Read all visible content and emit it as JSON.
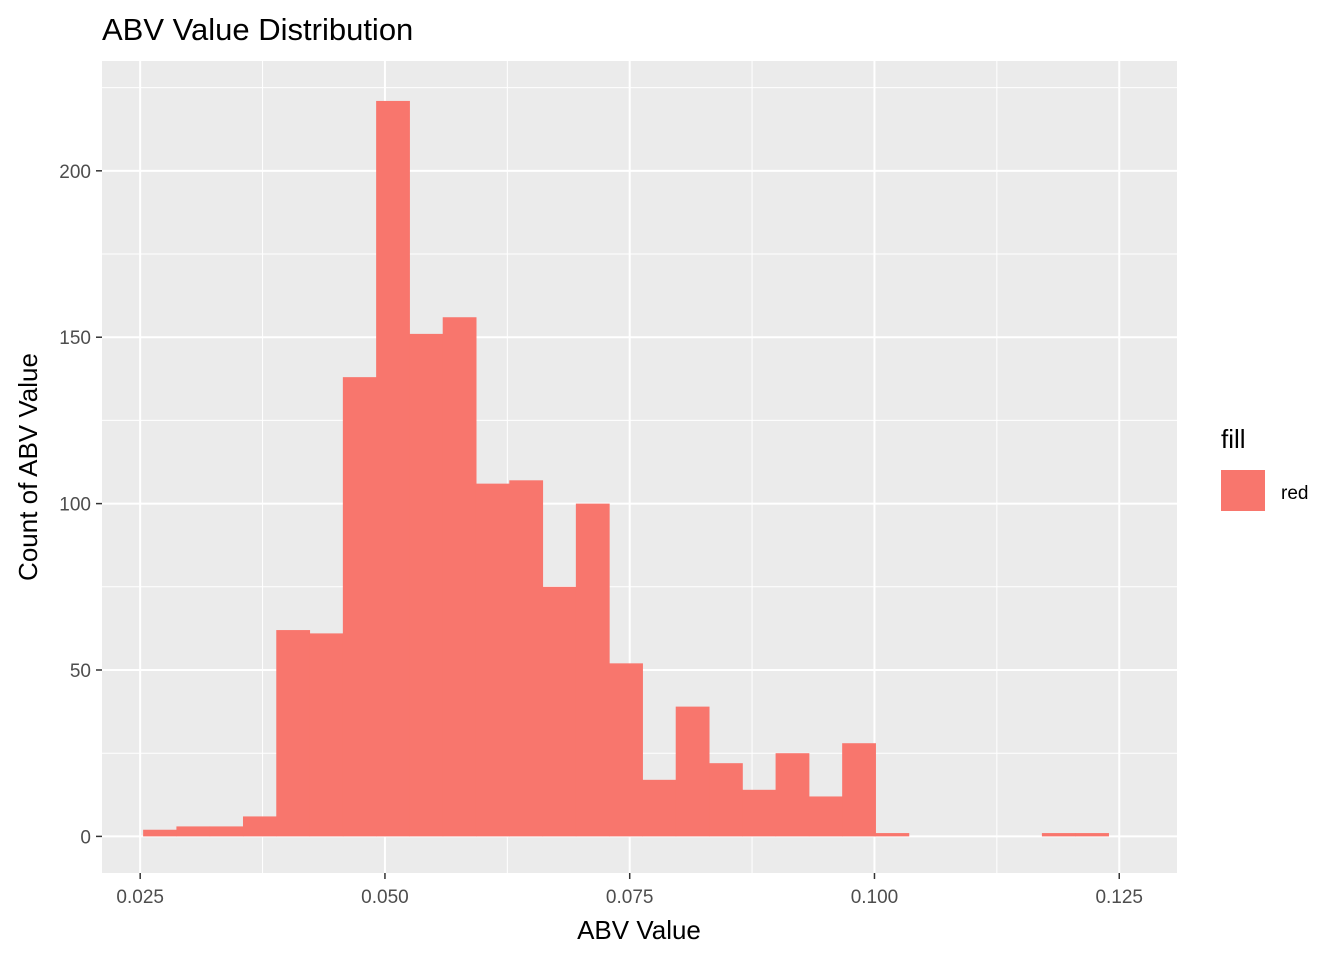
{
  "chart_data": {
    "type": "bar",
    "title": "ABV Value Distribution",
    "xlabel": "ABV Value",
    "ylabel": "Count of ABV Value",
    "xlim": [
      0.0211,
      0.1309
    ],
    "ylim": [
      -11,
      233
    ],
    "x_ticks": [
      0.025,
      0.05,
      0.075,
      0.1,
      0.125
    ],
    "x_tick_labels": [
      "0.025",
      "0.050",
      "0.075",
      "0.100",
      "0.125"
    ],
    "y_ticks": [
      0,
      50,
      100,
      150,
      200
    ],
    "y_tick_labels": [
      "0",
      "50",
      "100",
      "150",
      "200"
    ],
    "grid": true,
    "background_color": "#ebebeb",
    "bar_color": "#f8766d",
    "legend": {
      "title": "fill",
      "entries": [
        {
          "label": "red",
          "color": "#f8766d"
        }
      ],
      "position": "right"
    },
    "bin_width": 0.0034,
    "bin_start": 0.0253,
    "counts": [
      2,
      3,
      3,
      6,
      62,
      61,
      138,
      221,
      151,
      156,
      106,
      107,
      75,
      100,
      52,
      17,
      39,
      22,
      14,
      25,
      12,
      28,
      1,
      0,
      0,
      0,
      0,
      1,
      1
    ]
  }
}
